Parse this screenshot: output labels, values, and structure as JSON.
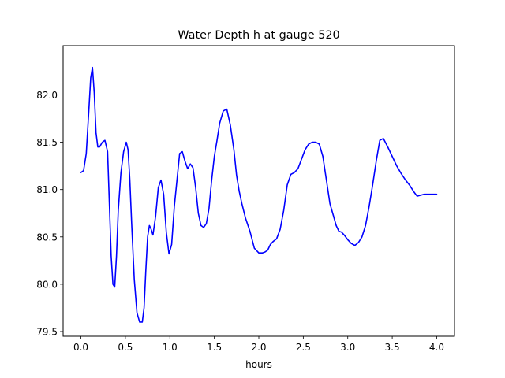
{
  "chart_data": {
    "type": "line",
    "title": "Water Depth h at gauge 520",
    "xlabel": "hours",
    "ylabel": "",
    "xlim": [
      -0.2,
      4.2
    ],
    "ylim": [
      79.45,
      82.52
    ],
    "xticks": [
      0.0,
      0.5,
      1.0,
      1.5,
      2.0,
      2.5,
      3.0,
      3.5,
      4.0
    ],
    "xtick_labels": [
      "0.0",
      "0.5",
      "1.0",
      "1.5",
      "2.0",
      "2.5",
      "3.0",
      "3.5",
      "4.0"
    ],
    "yticks": [
      79.5,
      80.0,
      80.5,
      81.0,
      81.5,
      82.0
    ],
    "ytick_labels": [
      "79.5",
      "80.0",
      "80.5",
      "81.0",
      "81.5",
      "82.0"
    ],
    "grid": false,
    "series": [
      {
        "color": "#0000ff",
        "x": [
          0.0,
          0.03,
          0.06,
          0.09,
          0.11,
          0.13,
          0.15,
          0.17,
          0.19,
          0.21,
          0.24,
          0.27,
          0.3,
          0.32,
          0.34,
          0.36,
          0.38,
          0.4,
          0.42,
          0.45,
          0.48,
          0.51,
          0.53,
          0.55,
          0.57,
          0.6,
          0.63,
          0.66,
          0.69,
          0.71,
          0.73,
          0.75,
          0.77,
          0.79,
          0.81,
          0.84,
          0.87,
          0.9,
          0.93,
          0.96,
          0.99,
          1.02,
          1.05,
          1.08,
          1.11,
          1.14,
          1.17,
          1.2,
          1.23,
          1.26,
          1.29,
          1.32,
          1.35,
          1.38,
          1.41,
          1.44,
          1.47,
          1.5,
          1.53,
          1.56,
          1.6,
          1.64,
          1.68,
          1.72,
          1.75,
          1.78,
          1.81,
          1.85,
          1.9,
          1.95,
          2.0,
          2.04,
          2.07,
          2.1,
          2.13,
          2.16,
          2.2,
          2.24,
          2.28,
          2.32,
          2.36,
          2.4,
          2.44,
          2.48,
          2.52,
          2.56,
          2.6,
          2.64,
          2.68,
          2.72,
          2.76,
          2.8,
          2.84,
          2.87,
          2.9,
          2.93,
          2.96,
          3.0,
          3.04,
          3.08,
          3.12,
          3.16,
          3.2,
          3.24,
          3.28,
          3.32,
          3.36,
          3.4,
          3.45,
          3.5,
          3.55,
          3.6,
          3.65,
          3.7,
          3.74,
          3.78,
          3.82,
          3.86,
          3.9,
          3.94,
          3.97,
          4.0
        ],
        "y": [
          81.18,
          81.2,
          81.38,
          81.85,
          82.18,
          82.29,
          82.02,
          81.6,
          81.45,
          81.45,
          81.5,
          81.52,
          81.4,
          80.85,
          80.3,
          80.0,
          79.97,
          80.3,
          80.78,
          81.18,
          81.4,
          81.5,
          81.42,
          81.1,
          80.65,
          80.05,
          79.7,
          79.6,
          79.6,
          79.75,
          80.15,
          80.5,
          80.62,
          80.58,
          80.52,
          80.72,
          81.02,
          81.1,
          80.95,
          80.55,
          80.32,
          80.42,
          80.82,
          81.1,
          81.38,
          81.4,
          81.3,
          81.22,
          81.27,
          81.23,
          81.02,
          80.75,
          80.62,
          80.6,
          80.64,
          80.8,
          81.1,
          81.35,
          81.52,
          81.7,
          81.83,
          81.85,
          81.68,
          81.42,
          81.15,
          80.98,
          80.85,
          80.7,
          80.56,
          80.38,
          80.33,
          80.33,
          80.34,
          80.36,
          80.42,
          80.45,
          80.48,
          80.58,
          80.78,
          81.05,
          81.16,
          81.18,
          81.22,
          81.32,
          81.42,
          81.48,
          81.5,
          81.5,
          81.48,
          81.35,
          81.1,
          80.85,
          80.72,
          80.62,
          80.56,
          80.55,
          80.52,
          80.47,
          80.43,
          80.41,
          80.44,
          80.5,
          80.62,
          80.82,
          81.05,
          81.3,
          81.52,
          81.54,
          81.45,
          81.35,
          81.25,
          81.17,
          81.1,
          81.04,
          80.98,
          80.93,
          80.94,
          80.95,
          80.95,
          80.95,
          80.95,
          80.95
        ]
      }
    ]
  }
}
